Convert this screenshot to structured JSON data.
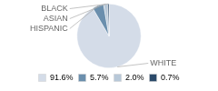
{
  "chart_data": {
    "type": "pie",
    "categories": [
      "WHITE",
      "HISPANIC",
      "ASIAN",
      "BLACK"
    ],
    "values": [
      91.6,
      5.7,
      2.0,
      0.7
    ],
    "value_labels": [
      "91.6%",
      "5.7%",
      "2.0%",
      "0.7%"
    ],
    "colors": [
      "#d4dce8",
      "#6b8fad",
      "#b8c8d8",
      "#2b4a6a"
    ],
    "legend": "bottom"
  }
}
